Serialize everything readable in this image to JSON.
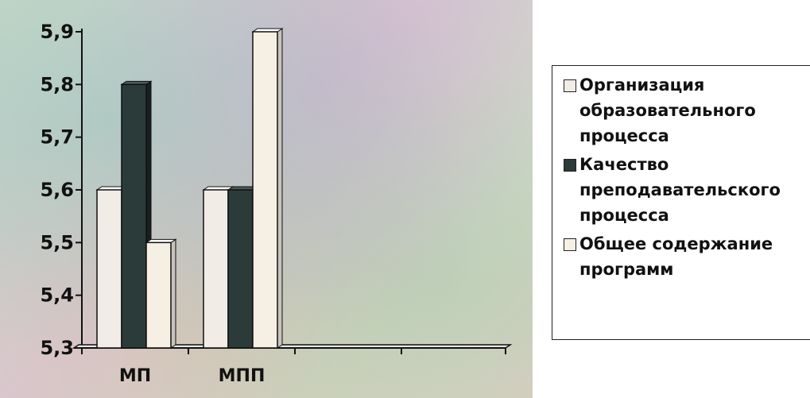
{
  "chart_data": {
    "type": "bar",
    "title": "",
    "xlabel": "",
    "ylabel": "",
    "categories": [
      "МП",
      "МПП"
    ],
    "series": [
      {
        "name": "Организация образовательного процесса",
        "values": [
          5.6,
          5.6
        ],
        "color": "#f2ece6"
      },
      {
        "name": "Качество преподавательского процесса",
        "values": [
          5.8,
          5.6
        ],
        "color": "#2a3b3a"
      },
      {
        "name": "Общее содержание программ",
        "values": [
          5.5,
          5.9
        ],
        "color": "#f6f0e4"
      }
    ],
    "ylim": [
      5.3,
      5.9
    ],
    "yticks": [
      "5,3",
      "5,4",
      "5,5",
      "5,6",
      "5,7",
      "5,8",
      "5,9"
    ],
    "grid": false,
    "legend_position": "right"
  }
}
